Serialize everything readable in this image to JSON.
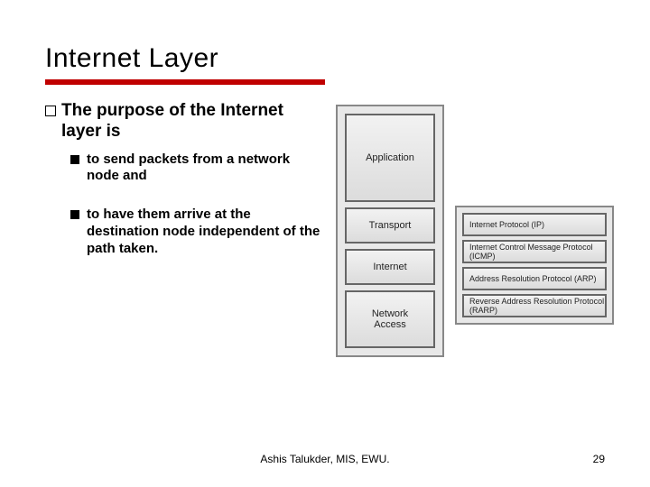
{
  "title": "Internet Layer",
  "rule_color": "#c00000",
  "bullets": {
    "l1": "The purpose of the Internet layer is",
    "l2a": "to send packets from a network node and",
    "l2b": "to have them arrive at the destination node independent of the path taken."
  },
  "layers": {
    "application": "Application",
    "transport": "Transport",
    "internet": "Internet",
    "network_access": "Network\nAccess"
  },
  "protocols": [
    "Internet Protocol (IP)",
    "Internet Control Message Protocol (ICMP)",
    "Address Resolution Protocol (ARP)",
    "Reverse Address Resolution Protocol (RARP)"
  ],
  "footer": "Ashis Talukder, MIS, EWU.",
  "page": "29",
  "box_border": "#666666",
  "box_bg_top": "#f2f2f2",
  "box_bg_bot": "#dcdcdc",
  "panel_bg": "#e8e8e8"
}
